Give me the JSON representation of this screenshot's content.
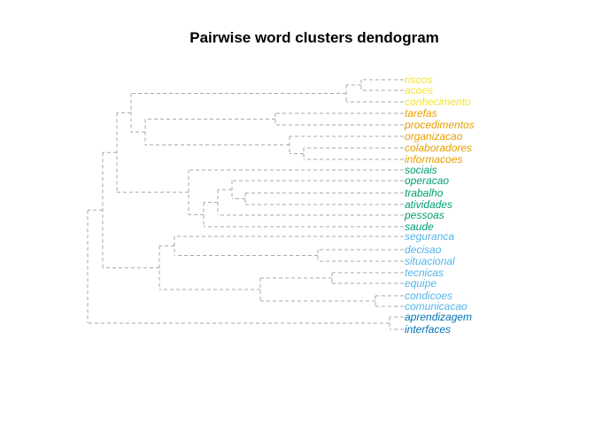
{
  "title": "Pairwise word clusters dendogram",
  "colors": {
    "yellow": "#F2E337",
    "orange": "#E69F00",
    "green": "#009E73",
    "sky": "#56B4E9",
    "blue": "#0072B2",
    "branch": "#a8a8a8"
  },
  "leaves": [
    {
      "label": "riscos",
      "color": "yellow"
    },
    {
      "label": "acoes",
      "color": "yellow"
    },
    {
      "label": "conhecimento",
      "color": "yellow"
    },
    {
      "label": "tarefas",
      "color": "orange"
    },
    {
      "label": "procedimentos",
      "color": "orange"
    },
    {
      "label": "organizacao",
      "color": "orange"
    },
    {
      "label": "colaboradores",
      "color": "orange"
    },
    {
      "label": "informacoes",
      "color": "orange"
    },
    {
      "label": "sociais",
      "color": "green"
    },
    {
      "label": "operacao",
      "color": "green"
    },
    {
      "label": "trabalho",
      "color": "green"
    },
    {
      "label": "atividades",
      "color": "green"
    },
    {
      "label": "pessoas",
      "color": "green"
    },
    {
      "label": "saude",
      "color": "green"
    },
    {
      "label": "seguranca",
      "color": "sky"
    },
    {
      "label": "decisao",
      "color": "sky"
    },
    {
      "label": "situacional",
      "color": "sky"
    },
    {
      "label": "tecnicas",
      "color": "sky"
    },
    {
      "label": "equipe",
      "color": "sky"
    },
    {
      "label": "condicoes",
      "color": "sky"
    },
    {
      "label": "comunicacao",
      "color": "sky"
    },
    {
      "label": "aprendizagem",
      "color": "blue"
    },
    {
      "label": "interfaces",
      "color": "blue"
    }
  ]
}
